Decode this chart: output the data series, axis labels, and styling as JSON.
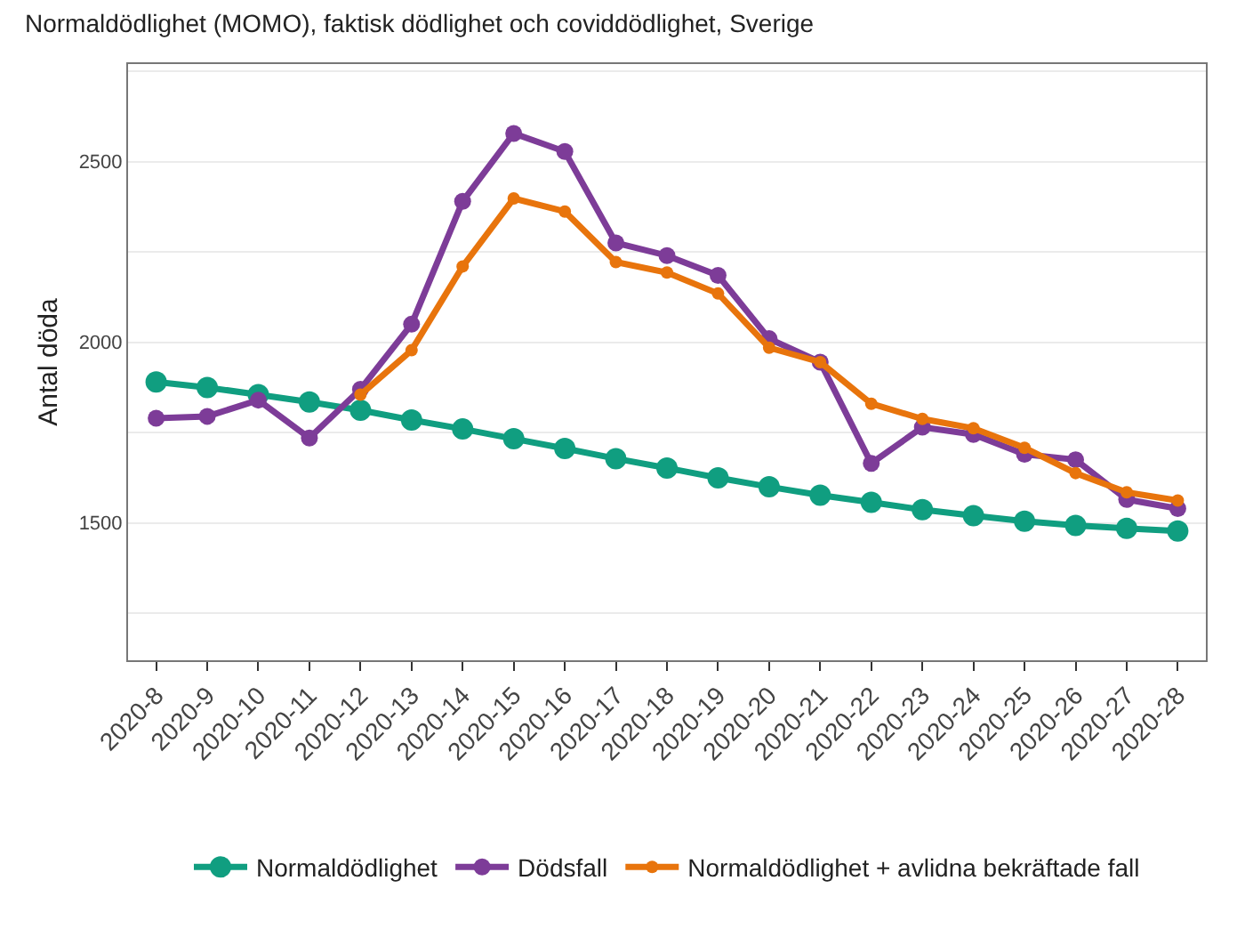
{
  "chart_data": {
    "type": "line",
    "title": "Normaldödlighet (MOMO), faktisk dödlighet och coviddödlighet, Sverige",
    "ylabel": "Antal döda",
    "categories": [
      "2020-8",
      "2020-9",
      "2020-10",
      "2020-11",
      "2020-12",
      "2020-13",
      "2020-14",
      "2020-15",
      "2020-16",
      "2020-17",
      "2020-18",
      "2020-19",
      "2020-20",
      "2020-21",
      "2020-22",
      "2020-23",
      "2020-24",
      "2020-25",
      "2020-26",
      "2020-27",
      "2020-28"
    ],
    "series": [
      {
        "name": "Normaldödlighet",
        "color": "#109e80",
        "values": [
          1890,
          1875,
          1855,
          1835,
          1812,
          1785,
          1760,
          1733,
          1706,
          1678,
          1652,
          1625,
          1600,
          1577,
          1557,
          1537,
          1520,
          1505,
          1493,
          1485,
          1478
        ]
      },
      {
        "name": "Dödsfall",
        "color": "#7d3c98",
        "values": [
          1790,
          1795,
          1840,
          1735,
          1870,
          2050,
          2390,
          2578,
          2528,
          2275,
          2240,
          2185,
          2010,
          1945,
          1665,
          1765,
          1745,
          1690,
          1675,
          1565,
          1540
        ]
      },
      {
        "name": "Normaldödlighet + avlidna bekräftade fall",
        "color": "#e8740c",
        "values": [
          null,
          null,
          null,
          null,
          1855,
          1978,
          2210,
          2398,
          2362,
          2222,
          2193,
          2135,
          1985,
          1945,
          1830,
          1788,
          1762,
          1708,
          1638,
          1585,
          1562
        ]
      }
    ],
    "ylim": [
      1120,
      2770
    ],
    "yticks": [
      {
        "value": 1250,
        "label": null
      },
      1500,
      {
        "value": 1750,
        "label": null
      },
      2000,
      {
        "value": 2250,
        "label": null
      },
      2500,
      {
        "value": 2750,
        "label": null
      }
    ],
    "grid": "y",
    "legend": "bottom",
    "marker": "circle",
    "line_style": "solid"
  }
}
